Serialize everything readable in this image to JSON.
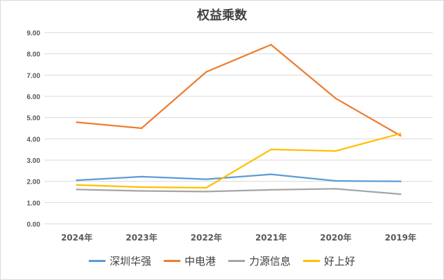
{
  "chart_data": {
    "type": "line",
    "title": "权益乘数",
    "categories": [
      "2024年",
      "2023年",
      "2022年",
      "2021年",
      "2020年",
      "2019年"
    ],
    "ylim": [
      0,
      9
    ],
    "yticks": [
      "0.00",
      "1.00",
      "2.00",
      "3.00",
      "4.00",
      "5.00",
      "6.00",
      "7.00",
      "8.00",
      "9.00"
    ],
    "grid": true,
    "legend_position": "bottom",
    "series": [
      {
        "name": "深圳华强",
        "color": "#5b9bd5",
        "values": [
          2.05,
          2.22,
          2.1,
          2.33,
          2.02,
          2.0
        ]
      },
      {
        "name": "中电港",
        "color": "#ed7d31",
        "values": [
          4.78,
          4.5,
          7.15,
          8.43,
          5.9,
          4.15
        ]
      },
      {
        "name": "力源信息",
        "color": "#a5a5a5",
        "values": [
          1.62,
          1.55,
          1.52,
          1.6,
          1.65,
          1.4
        ]
      },
      {
        "name": "好上好",
        "color": "#ffc000",
        "values": [
          1.83,
          1.73,
          1.7,
          3.5,
          3.43,
          4.25
        ]
      }
    ]
  }
}
